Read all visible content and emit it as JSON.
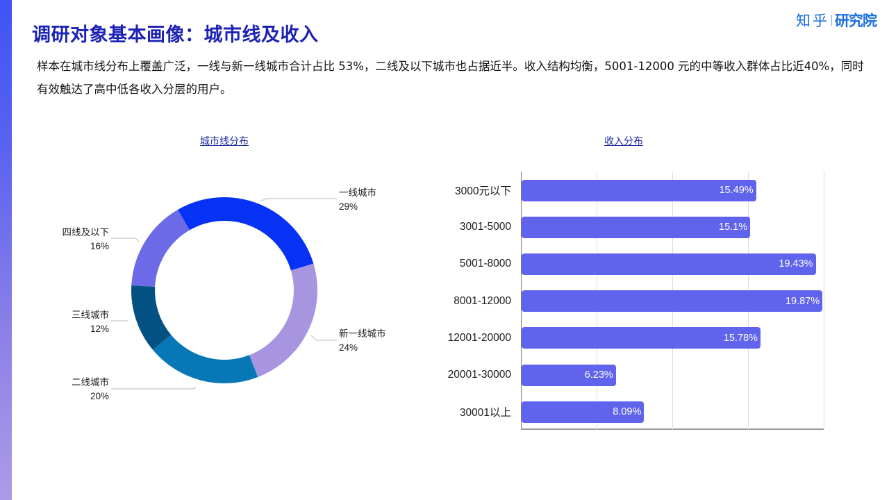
{
  "page": {
    "title": "调研对象基本画像：城市线及收入",
    "summary": "样本在城市线分布上覆盖广泛，一线与新一线城市合计占比 53%，二线及以下城市也占据近半。收入结构均衡，5001-12000 元的中等收入群体占比近40%，同时有效触达了高中低各收入分层的用户。",
    "logo": {
      "part1": "知乎",
      "part2": "研究院",
      "color": "#1a6fe0"
    },
    "accent_bar_colors": [
      "#3f53f6",
      "#ad9be6"
    ],
    "title_color": "#1c22b4"
  },
  "chart_data": [
    {
      "type": "pie",
      "variant": "donut",
      "title": "城市线分布",
      "categories": [
        "一线城市",
        "新一线城市",
        "二线城市",
        "三线城市",
        "四线及以下"
      ],
      "values": [
        29,
        24,
        20,
        12,
        16
      ],
      "value_labels": [
        "29%",
        "24%",
        "20%",
        "12%",
        "16%"
      ],
      "colors": [
        "#0532f5",
        "#a795e0",
        "#0777b6",
        "#045283",
        "#6d6ae8"
      ],
      "start_angle_deg": -30,
      "direction": "clockwise",
      "legend": "none (callout labels)"
    },
    {
      "type": "bar",
      "orientation": "horizontal",
      "title": "收入分布",
      "categories": [
        "3000元以下",
        "3001-5000",
        "5001-8000",
        "8001-12000",
        "12001-20000",
        "20001-30000",
        "30001以上"
      ],
      "values": [
        15.49,
        15.1,
        19.43,
        19.87,
        15.78,
        6.23,
        8.09
      ],
      "value_labels": [
        "15.49%",
        "15.1%",
        "19.43%",
        "19.87%",
        "15.78%",
        "6.23%",
        "8.09%"
      ],
      "xlabel": "",
      "ylabel": "",
      "xlim": [
        0,
        20
      ],
      "x_gridlines": [
        5,
        10,
        15,
        20
      ],
      "x_tick_labels_visible": false,
      "bar_color": "#6063ec",
      "grid": true
    }
  ]
}
